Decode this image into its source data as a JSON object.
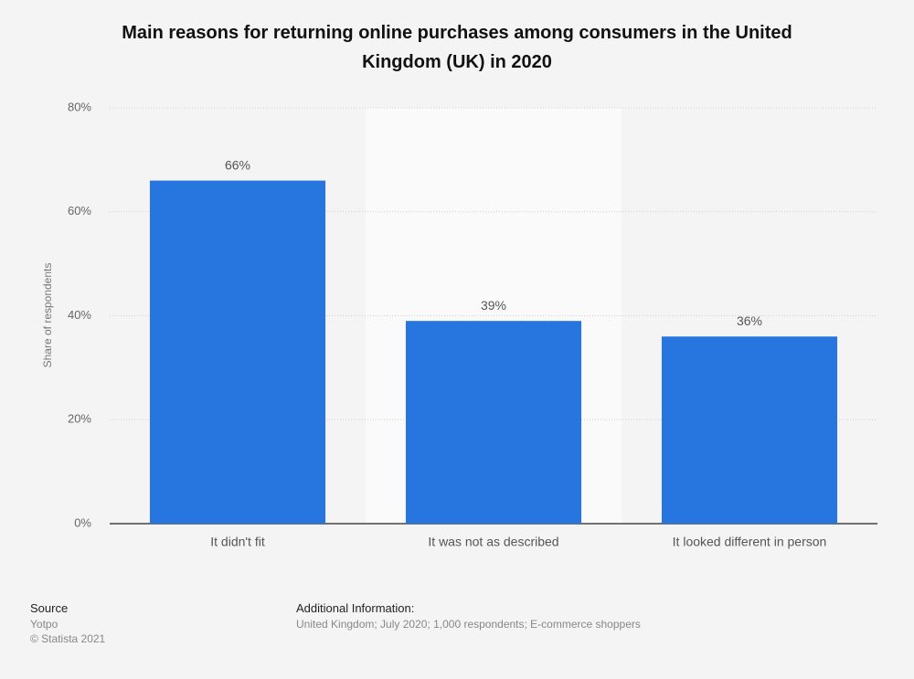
{
  "chart_data": {
    "type": "bar",
    "title": "Main reasons for returning online purchases among consumers in the United Kingdom (UK) in 2020",
    "y_label": "Share of respondents",
    "categories": [
      "It didn't fit",
      "It was not as described",
      "It looked different in person"
    ],
    "values": [
      66,
      39,
      36
    ],
    "value_labels": [
      "66%",
      "39%",
      "36%"
    ],
    "color": "#2775de",
    "ylim": [
      0,
      80
    ],
    "yticks": [
      {
        "value": 0,
        "label": "0%"
      },
      {
        "value": 20,
        "label": "20%"
      },
      {
        "value": 40,
        "label": "40%"
      },
      {
        "value": 60,
        "label": "60%"
      },
      {
        "value": 80,
        "label": "80%"
      }
    ],
    "grid": true,
    "source_label": "Source",
    "source": "Yotpo",
    "copyright": "© Statista 2021",
    "additional_info_label": "Additional Information:",
    "additional_info": "United Kingdom; July 2020; 1,000 respondents; E-commerce shoppers"
  }
}
